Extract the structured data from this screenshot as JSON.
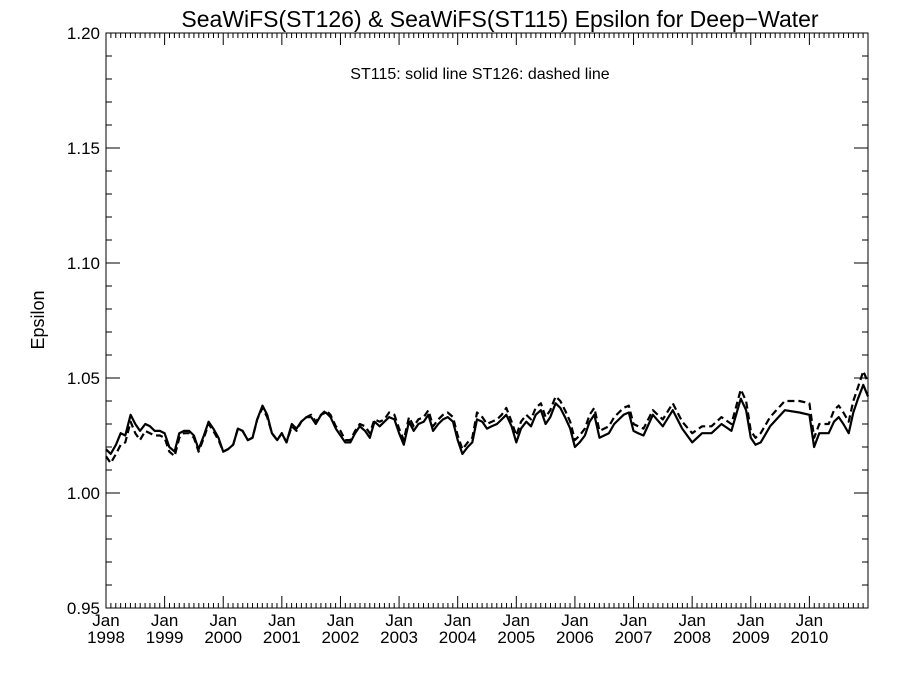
{
  "chart_data": {
    "type": "line",
    "title": "SeaWiFS(ST126) & SeaWiFS(ST115)  Epsilon for Deep−Water",
    "ylabel": "Epsilon",
    "xlabel": "",
    "annotation": "ST115: solid line   ST126: dashed line",
    "ylim": [
      0.95,
      1.2
    ],
    "xlim": [
      1998.0,
      2011.0
    ],
    "y_ticks": [
      "0.95",
      "1.00",
      "1.05",
      "1.10",
      "1.15",
      "1.20"
    ],
    "x_ticks": [
      {
        "month": "Jan",
        "year": "1998"
      },
      {
        "month": "Jan",
        "year": "1999"
      },
      {
        "month": "Jan",
        "year": "2000"
      },
      {
        "month": "Jan",
        "year": "2001"
      },
      {
        "month": "Jan",
        "year": "2002"
      },
      {
        "month": "Jan",
        "year": "2003"
      },
      {
        "month": "Jan",
        "year": "2004"
      },
      {
        "month": "Jan",
        "year": "2005"
      },
      {
        "month": "Jan",
        "year": "2006"
      },
      {
        "month": "Jan",
        "year": "2007"
      },
      {
        "month": "Jan",
        "year": "2008"
      },
      {
        "month": "Jan",
        "year": "2009"
      },
      {
        "month": "Jan",
        "year": "2010"
      }
    ],
    "grid": false,
    "series": [
      {
        "name": "ST115",
        "style": "solid",
        "color": "#000000",
        "x": [
          1998.0,
          1998.08,
          1998.17,
          1998.25,
          1998.33,
          1998.42,
          1998.5,
          1998.58,
          1998.67,
          1998.75,
          1998.83,
          1998.92,
          1999.0,
          1999.08,
          1999.17,
          1999.25,
          1999.33,
          1999.42,
          1999.5,
          1999.58,
          1999.67,
          1999.75,
          1999.83,
          1999.92,
          2000.0,
          2000.08,
          2000.17,
          2000.25,
          2000.33,
          2000.42,
          2000.5,
          2000.58,
          2000.67,
          2000.75,
          2000.83,
          2000.92,
          2001.0,
          2001.08,
          2001.17,
          2001.25,
          2001.33,
          2001.42,
          2001.5,
          2001.58,
          2001.67,
          2001.75,
          2001.83,
          2001.92,
          2002.0,
          2002.08,
          2002.17,
          2002.25,
          2002.33,
          2002.42,
          2002.5,
          2002.58,
          2002.67,
          2002.75,
          2002.83,
          2002.92,
          2003.0,
          2003.08,
          2003.17,
          2003.25,
          2003.33,
          2003.42,
          2003.5,
          2003.58,
          2003.67,
          2003.75,
          2003.83,
          2003.92,
          2004.0,
          2004.08,
          2004.17,
          2004.25,
          2004.33,
          2004.42,
          2004.5,
          2004.58,
          2004.67,
          2004.75,
          2004.83,
          2004.92,
          2005.0,
          2005.08,
          2005.17,
          2005.25,
          2005.33,
          2005.42,
          2005.5,
          2005.58,
          2005.67,
          2005.75,
          2005.83,
          2005.92,
          2006.0,
          2006.08,
          2006.17,
          2006.25,
          2006.33,
          2006.42,
          2006.5,
          2006.58,
          2006.67,
          2006.75,
          2006.83,
          2006.92,
          2007.0,
          2007.08,
          2007.17,
          2007.33,
          2007.5,
          2007.67,
          2007.83,
          2008.0,
          2008.17,
          2008.33,
          2008.5,
          2008.67,
          2008.83,
          2008.92,
          2009.0,
          2009.08,
          2009.17,
          2009.33,
          2009.58,
          2009.83,
          2010.0,
          2010.08,
          2010.17,
          2010.33,
          2010.42,
          2010.5,
          2010.58,
          2010.67,
          2010.75,
          2010.83,
          2010.92,
          2011.0
        ],
        "y": [
          1.019,
          1.017,
          1.021,
          1.026,
          1.025,
          1.034,
          1.03,
          1.027,
          1.03,
          1.029,
          1.027,
          1.027,
          1.026,
          1.02,
          1.018,
          1.026,
          1.027,
          1.027,
          1.025,
          1.019,
          1.025,
          1.031,
          1.028,
          1.024,
          1.018,
          1.019,
          1.021,
          1.028,
          1.027,
          1.023,
          1.024,
          1.032,
          1.038,
          1.034,
          1.026,
          1.023,
          1.026,
          1.022,
          1.03,
          1.028,
          1.031,
          1.033,
          1.033,
          1.03,
          1.034,
          1.035,
          1.033,
          1.028,
          1.025,
          1.022,
          1.022,
          1.026,
          1.029,
          1.027,
          1.024,
          1.031,
          1.029,
          1.031,
          1.033,
          1.032,
          1.026,
          1.021,
          1.031,
          1.027,
          1.03,
          1.031,
          1.034,
          1.027,
          1.03,
          1.032,
          1.033,
          1.031,
          1.023,
          1.017,
          1.02,
          1.022,
          1.032,
          1.031,
          1.028,
          1.029,
          1.03,
          1.032,
          1.034,
          1.029,
          1.022,
          1.028,
          1.031,
          1.029,
          1.034,
          1.036,
          1.03,
          1.033,
          1.039,
          1.037,
          1.033,
          1.028,
          1.02,
          1.022,
          1.025,
          1.031,
          1.034,
          1.024,
          1.025,
          1.026,
          1.03,
          1.032,
          1.034,
          1.035,
          1.027,
          1.026,
          1.025,
          1.034,
          1.029,
          1.036,
          1.028,
          1.022,
          1.026,
          1.026,
          1.03,
          1.027,
          1.041,
          1.036,
          1.024,
          1.021,
          1.022,
          1.029,
          1.036,
          1.035,
          1.034,
          1.02,
          1.026,
          1.026,
          1.031,
          1.033,
          1.03,
          1.026,
          1.035,
          1.041,
          1.047,
          1.042
        ]
      },
      {
        "name": "ST126",
        "style": "dashed",
        "color": "#000000",
        "x": [
          1998.0,
          1998.08,
          1998.17,
          1998.25,
          1998.33,
          1998.42,
          1998.5,
          1998.58,
          1998.67,
          1998.75,
          1998.83,
          1998.92,
          1999.0,
          1999.08,
          1999.17,
          1999.25,
          1999.33,
          1999.42,
          1999.5,
          1999.58,
          1999.67,
          1999.75,
          1999.83,
          1999.92,
          2000.0,
          2000.08,
          2000.17,
          2000.25,
          2000.33,
          2000.42,
          2000.5,
          2000.58,
          2000.67,
          2000.75,
          2000.83,
          2000.92,
          2001.0,
          2001.08,
          2001.17,
          2001.25,
          2001.33,
          2001.42,
          2001.5,
          2001.58,
          2001.67,
          2001.75,
          2001.83,
          2001.92,
          2002.0,
          2002.08,
          2002.17,
          2002.25,
          2002.33,
          2002.42,
          2002.5,
          2002.58,
          2002.67,
          2002.75,
          2002.83,
          2002.92,
          2003.0,
          2003.08,
          2003.17,
          2003.25,
          2003.33,
          2003.42,
          2003.5,
          2003.58,
          2003.67,
          2003.75,
          2003.83,
          2003.92,
          2004.0,
          2004.08,
          2004.17,
          2004.25,
          2004.33,
          2004.42,
          2004.5,
          2004.58,
          2004.67,
          2004.75,
          2004.83,
          2004.92,
          2005.0,
          2005.08,
          2005.17,
          2005.25,
          2005.33,
          2005.42,
          2005.5,
          2005.58,
          2005.67,
          2005.75,
          2005.83,
          2005.92,
          2006.0,
          2006.08,
          2006.17,
          2006.25,
          2006.33,
          2006.42,
          2006.5,
          2006.58,
          2006.67,
          2006.75,
          2006.83,
          2006.92,
          2007.0,
          2007.08,
          2007.17,
          2007.33,
          2007.5,
          2007.67,
          2007.83,
          2008.0,
          2008.17,
          2008.33,
          2008.5,
          2008.67,
          2008.83,
          2008.92,
          2009.0,
          2009.08,
          2009.17,
          2009.33,
          2009.58,
          2009.83,
          2010.0,
          2010.08,
          2010.17,
          2010.33,
          2010.42,
          2010.5,
          2010.58,
          2010.67,
          2010.75,
          2010.83,
          2010.92,
          2011.0
        ],
        "y": [
          1.016,
          1.013,
          1.017,
          1.021,
          1.022,
          1.031,
          1.026,
          1.023,
          1.027,
          1.026,
          1.025,
          1.025,
          1.024,
          1.018,
          1.016,
          1.024,
          1.026,
          1.026,
          1.024,
          1.018,
          1.024,
          1.03,
          1.027,
          1.023,
          1.018,
          1.019,
          1.021,
          1.028,
          1.027,
          1.023,
          1.024,
          1.032,
          1.037,
          1.033,
          1.026,
          1.023,
          1.026,
          1.022,
          1.029,
          1.027,
          1.031,
          1.033,
          1.034,
          1.031,
          1.034,
          1.036,
          1.034,
          1.029,
          1.027,
          1.023,
          1.023,
          1.027,
          1.03,
          1.029,
          1.026,
          1.032,
          1.031,
          1.032,
          1.035,
          1.034,
          1.028,
          1.023,
          1.033,
          1.029,
          1.032,
          1.033,
          1.036,
          1.029,
          1.032,
          1.034,
          1.035,
          1.033,
          1.025,
          1.019,
          1.022,
          1.024,
          1.035,
          1.033,
          1.03,
          1.031,
          1.032,
          1.034,
          1.037,
          1.031,
          1.025,
          1.031,
          1.034,
          1.032,
          1.037,
          1.039,
          1.033,
          1.036,
          1.042,
          1.04,
          1.036,
          1.031,
          1.023,
          1.025,
          1.028,
          1.034,
          1.037,
          1.027,
          1.028,
          1.029,
          1.033,
          1.035,
          1.037,
          1.038,
          1.03,
          1.029,
          1.028,
          1.036,
          1.032,
          1.039,
          1.031,
          1.026,
          1.029,
          1.029,
          1.033,
          1.03,
          1.045,
          1.04,
          1.027,
          1.024,
          1.026,
          1.033,
          1.04,
          1.04,
          1.039,
          1.024,
          1.03,
          1.03,
          1.036,
          1.038,
          1.035,
          1.031,
          1.04,
          1.046,
          1.053,
          1.048
        ]
      }
    ]
  }
}
